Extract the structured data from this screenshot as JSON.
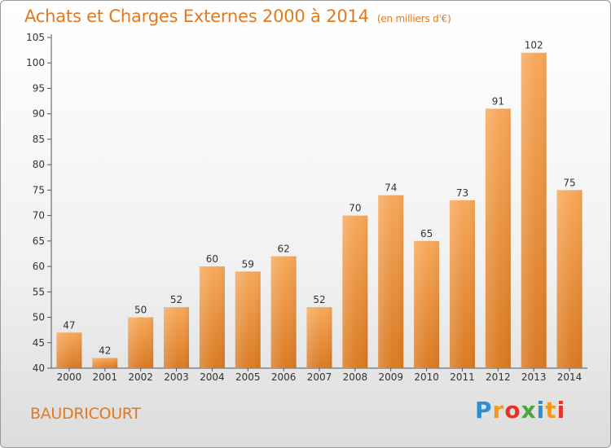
{
  "header": {
    "title": "Achats et Charges Externes 2000 à 2014",
    "subtitle": "(en milliers d'€)"
  },
  "commune": "BAUDRICOURT",
  "logo": {
    "text": "Proxiti",
    "letters": [
      "P",
      "r",
      "o",
      "x",
      "i",
      "t",
      "i"
    ],
    "colors": [
      "#2a8fd6",
      "#f39a1e",
      "#e5322b",
      "#4aa83a",
      "#2a8fd6",
      "#f39a1e",
      "#e5322b"
    ]
  },
  "colors": {
    "accent": "#e07a1f",
    "bar_top": "#f7a85a",
    "bar_bottom": "#d97a22"
  },
  "chart_data": {
    "type": "bar",
    "title": "Achats et Charges Externes 2000 à 2014",
    "subtitle": "(en milliers d'€)",
    "categories": [
      "2000",
      "2001",
      "2002",
      "2003",
      "2004",
      "2005",
      "2006",
      "2007",
      "2008",
      "2009",
      "2010",
      "2011",
      "2012",
      "2013",
      "2014"
    ],
    "values": [
      47,
      42,
      50,
      52,
      60,
      59,
      62,
      52,
      70,
      74,
      65,
      73,
      91,
      102,
      75
    ],
    "ylim": [
      40,
      105
    ],
    "yticks": [
      40,
      45,
      50,
      55,
      60,
      65,
      70,
      75,
      80,
      85,
      90,
      95,
      100,
      105
    ],
    "grid": false
  }
}
